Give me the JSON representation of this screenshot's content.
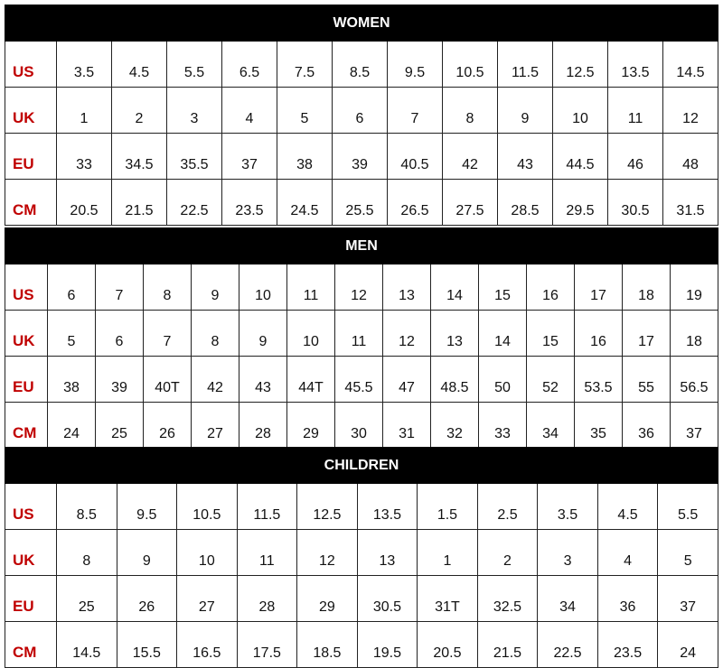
{
  "colors": {
    "header_bg": "#000000",
    "header_text": "#ffffff",
    "row_label": "#c00000"
  },
  "tables": [
    {
      "title": "WOMEN",
      "rows": [
        {
          "label": "US",
          "values": [
            "3.5",
            "4.5",
            "5.5",
            "6.5",
            "7.5",
            "8.5",
            "9.5",
            "10.5",
            "11.5",
            "12.5",
            "13.5",
            "14.5"
          ]
        },
        {
          "label": "UK",
          "values": [
            "1",
            "2",
            "3",
            "4",
            "5",
            "6",
            "7",
            "8",
            "9",
            "10",
            "11",
            "12"
          ]
        },
        {
          "label": "EU",
          "values": [
            "33",
            "34.5",
            "35.5",
            "37",
            "38",
            "39",
            "40.5",
            "42",
            "43",
            "44.5",
            "46",
            "48"
          ]
        },
        {
          "label": "CM",
          "values": [
            "20.5",
            "21.5",
            "22.5",
            "23.5",
            "24.5",
            "25.5",
            "26.5",
            "27.5",
            "28.5",
            "29.5",
            "30.5",
            "31.5"
          ]
        }
      ]
    },
    {
      "title": "MEN",
      "rows": [
        {
          "label": "US",
          "values": [
            "6",
            "7",
            "8",
            "9",
            "10",
            "11",
            "12",
            "13",
            "14",
            "15",
            "16",
            "17",
            "18",
            "19"
          ]
        },
        {
          "label": "UK",
          "values": [
            "5",
            "6",
            "7",
            "8",
            "9",
            "10",
            "11",
            "12",
            "13",
            "14",
            "15",
            "16",
            "17",
            "18"
          ]
        },
        {
          "label": "EU",
          "values": [
            "38",
            "39",
            "40T",
            "42",
            "43",
            "44T",
            "45.5",
            "47",
            "48.5",
            "50",
            "52",
            "53.5",
            "55",
            "56.5"
          ]
        },
        {
          "label": "CM",
          "values": [
            "24",
            "25",
            "26",
            "27",
            "28",
            "29",
            "30",
            "31",
            "32",
            "33",
            "34",
            "35",
            "36",
            "37"
          ]
        }
      ]
    },
    {
      "title": "CHILDREN",
      "rows": [
        {
          "label": "US",
          "values": [
            "8.5",
            "9.5",
            "10.5",
            "11.5",
            "12.5",
            "13.5",
            "1.5",
            "2.5",
            "3.5",
            "4.5",
            "5.5"
          ]
        },
        {
          "label": "UK",
          "values": [
            "8",
            "9",
            "10",
            "11",
            "12",
            "13",
            "1",
            "2",
            "3",
            "4",
            "5"
          ]
        },
        {
          "label": "EU",
          "values": [
            "25",
            "26",
            "27",
            "28",
            "29",
            "30.5",
            "31T",
            "32.5",
            "34",
            "36",
            "37"
          ]
        },
        {
          "label": "CM",
          "values": [
            "14.5",
            "15.5",
            "16.5",
            "17.5",
            "18.5",
            "19.5",
            "20.5",
            "21.5",
            "22.5",
            "23.5",
            "24"
          ]
        }
      ]
    }
  ]
}
